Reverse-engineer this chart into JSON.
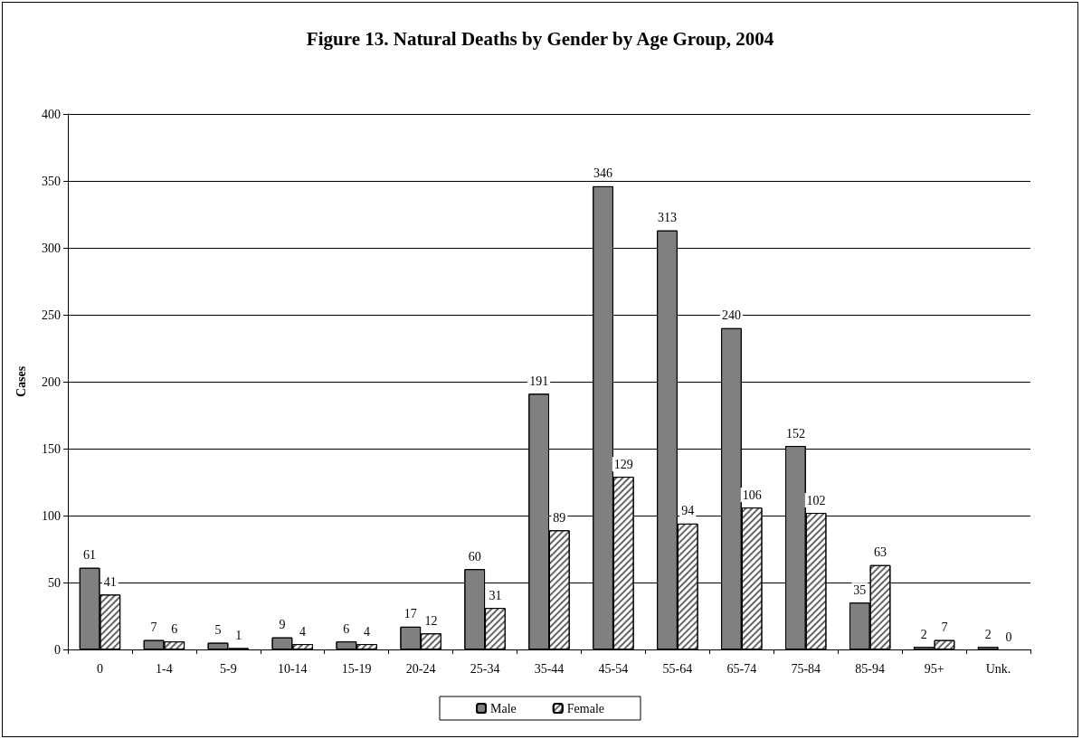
{
  "chart_data": {
    "type": "bar",
    "title": "Figure 13. Natural Deaths by Gender by Age Group, 2004",
    "ylabel": "Cases",
    "categories": [
      "0",
      "1-4",
      "5-9",
      "10-14",
      "15-19",
      "20-24",
      "25-34",
      "35-44",
      "45-54",
      "55-64",
      "65-74",
      "75-84",
      "85-94",
      "95+",
      "Unk."
    ],
    "series": [
      {
        "name": "Male",
        "color": "#808080",
        "values": [
          61,
          7,
          5,
          9,
          6,
          17,
          60,
          191,
          346,
          313,
          240,
          152,
          35,
          2,
          2
        ]
      },
      {
        "name": "Female",
        "color": "#ffffff",
        "values": [
          41,
          6,
          1,
          4,
          4,
          12,
          31,
          89,
          129,
          94,
          106,
          102,
          63,
          7,
          0
        ]
      }
    ],
    "ylim": [
      0,
      400
    ],
    "yticks": [
      0,
      50,
      100,
      150,
      200,
      250,
      300,
      350,
      400
    ],
    "grid": "y",
    "legend": "bottom",
    "data_labels": true
  }
}
